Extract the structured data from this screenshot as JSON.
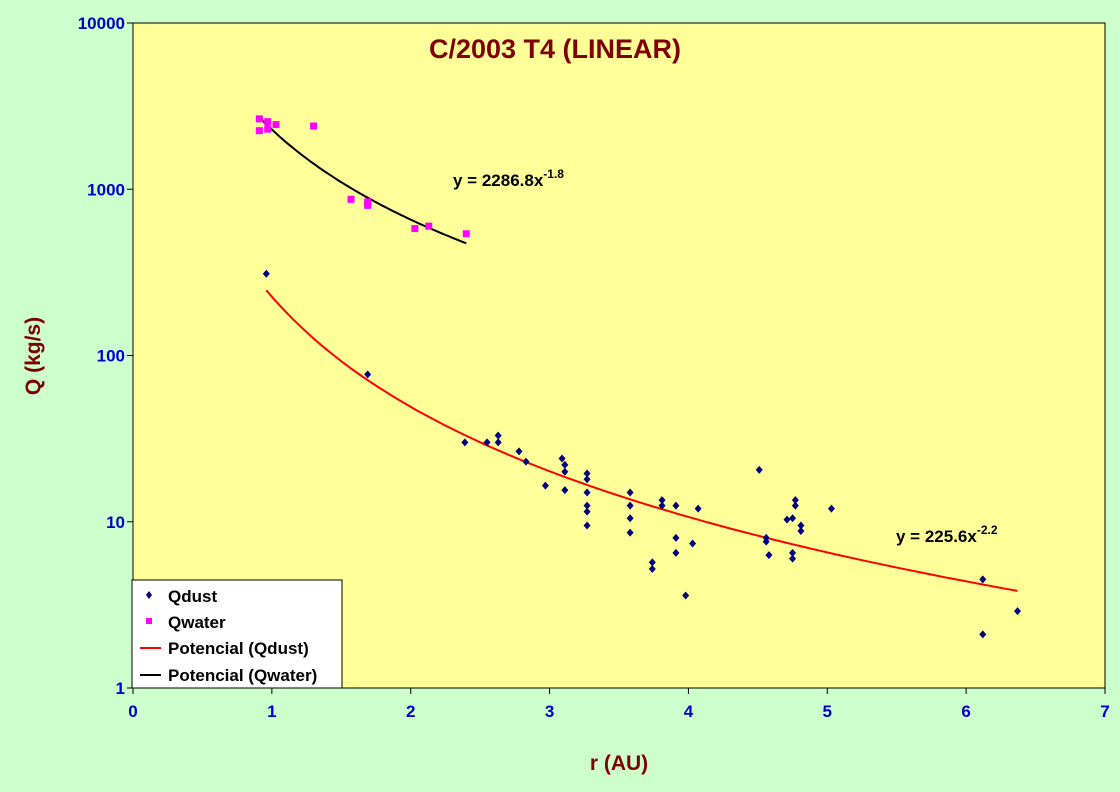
{
  "chart_data": {
    "type": "scatter",
    "title": "C/2003 T4 (LINEAR)",
    "xlabel": "r (AU)",
    "ylabel": "Q (kg/s)",
    "xlim": [
      0,
      7
    ],
    "ylim": [
      1,
      10000
    ],
    "y_scale": "log",
    "x_ticks": [
      "0",
      "1",
      "2",
      "3",
      "4",
      "5",
      "6",
      "7"
    ],
    "y_ticks": [
      "1",
      "10",
      "100",
      "1000",
      "10000"
    ],
    "grid": false,
    "legend_position": "bottom-left",
    "colors": {
      "background": "#ccffcc",
      "plot_area": "#ffff99",
      "qdust": "#000080",
      "qwater": "#ff00ff",
      "fit_dust": "#ff0000",
      "fit_water": "#000000",
      "tick_labels": "#0000cc",
      "titles": "#800000"
    },
    "series": [
      {
        "name": "Qdust",
        "marker": "diamond",
        "points": [
          [
            0.96,
            310
          ],
          [
            1.69,
            77
          ],
          [
            2.39,
            30
          ],
          [
            2.55,
            30
          ],
          [
            2.63,
            33
          ],
          [
            2.63,
            30
          ],
          [
            2.78,
            26.5
          ],
          [
            2.83,
            23
          ],
          [
            2.97,
            16.5
          ],
          [
            3.09,
            24
          ],
          [
            3.11,
            22
          ],
          [
            3.11,
            20
          ],
          [
            3.11,
            15.5
          ],
          [
            3.27,
            19.5
          ],
          [
            3.27,
            18
          ],
          [
            3.27,
            15
          ],
          [
            3.27,
            12.5
          ],
          [
            3.27,
            11.5
          ],
          [
            3.27,
            9.5
          ],
          [
            3.58,
            15
          ],
          [
            3.58,
            12.5
          ],
          [
            3.58,
            10.5
          ],
          [
            3.58,
            8.6
          ],
          [
            3.74,
            5.7
          ],
          [
            3.74,
            5.2
          ],
          [
            3.81,
            13.5
          ],
          [
            3.81,
            12.5
          ],
          [
            3.91,
            12.5
          ],
          [
            3.91,
            8
          ],
          [
            3.91,
            6.5
          ],
          [
            3.98,
            3.6
          ],
          [
            4.03,
            7.4
          ],
          [
            4.07,
            12
          ],
          [
            4.51,
            20.5
          ],
          [
            4.56,
            8
          ],
          [
            4.56,
            7.6
          ],
          [
            4.58,
            6.3
          ],
          [
            4.71,
            10.3
          ],
          [
            4.75,
            10.5
          ],
          [
            4.75,
            6.5
          ],
          [
            4.75,
            6
          ],
          [
            4.77,
            13.5
          ],
          [
            4.77,
            12.5
          ],
          [
            4.81,
            9.5
          ],
          [
            4.81,
            8.8
          ],
          [
            5.03,
            12
          ],
          [
            6.12,
            4.5
          ],
          [
            6.12,
            2.1
          ],
          [
            6.37,
            2.9
          ]
        ]
      },
      {
        "name": "Qwater",
        "marker": "square",
        "points": [
          [
            0.91,
            2650
          ],
          [
            0.91,
            2250
          ],
          [
            0.97,
            2550
          ],
          [
            0.97,
            2300
          ],
          [
            1.03,
            2450
          ],
          [
            1.3,
            2400
          ],
          [
            1.57,
            870
          ],
          [
            1.69,
            840
          ],
          [
            1.69,
            800
          ],
          [
            2.03,
            580
          ],
          [
            2.13,
            600
          ],
          [
            2.4,
            540
          ]
        ]
      }
    ],
    "fits": [
      {
        "name": "Potencial (Qdust)",
        "equation": "y = 225.6x",
        "exponent": "-2.2",
        "a": 225.6,
        "b": -2.2,
        "x_range": [
          0.96,
          6.37
        ]
      },
      {
        "name": "Potencial (Qwater)",
        "equation": "y = 2286.8x",
        "exponent": "-1.8",
        "a": 2286.8,
        "b": -1.8,
        "x_range": [
          0.91,
          2.4
        ]
      }
    ]
  }
}
